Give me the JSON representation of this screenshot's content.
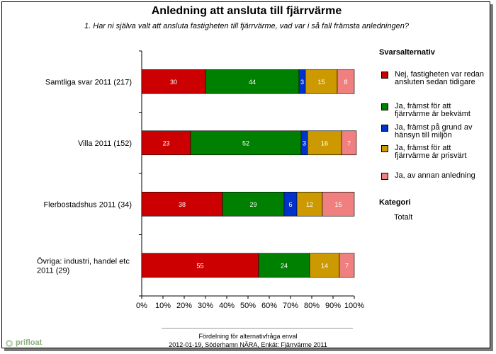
{
  "title": "Anledning att ansluta till fjärrvärme",
  "subtitle": "1. Har ni själva valt att ansluta fastigheten till fjärrvärme, vad var i så fall främsta anledningen?",
  "legend_title": "Svarsalternativ",
  "category_title": "Kategori",
  "category_value": "Totalt",
  "footer_line1": "Fördelning för alternativfråga enval",
  "footer_line2": "2012-01-19, Söderhamn NÄRA, Enkät: Fjärrvärme 2011",
  "brand": "prifloat",
  "chart_data": {
    "type": "bar",
    "orientation": "horizontal",
    "stacked": true,
    "categories": [
      "Samtliga svar 2011 (217)",
      "Villa 2011 (152)",
      "Flerbostadshus 2011 (34)",
      "Övriga: industri, handel etc 2011 (29)"
    ],
    "xlim": [
      0,
      100
    ],
    "x_ticks": [
      "0%",
      "10%",
      "20%",
      "30%",
      "40%",
      "50%",
      "60%",
      "70%",
      "80%",
      "90%",
      "100%"
    ],
    "series": [
      {
        "name": "Nej, fastigheten var redan ansluten sedan tidigare",
        "color": "#cc0000",
        "values": [
          30,
          23,
          38,
          55
        ]
      },
      {
        "name": "Ja, främst för att fjärrvärme är bekvämt",
        "color": "#008000",
        "values": [
          44,
          52,
          29,
          24
        ]
      },
      {
        "name": "Ja, främst på grund av hänsyn till miljön",
        "color": "#0033cc",
        "values": [
          3,
          3,
          6,
          0
        ]
      },
      {
        "name": "Ja, främst för att fjärrvärme är prisvärt",
        "color": "#cc9900",
        "values": [
          15,
          16,
          12,
          14
        ]
      },
      {
        "name": "Ja, av annan anledning",
        "color": "#f08080",
        "values": [
          8,
          7,
          15,
          7
        ]
      }
    ]
  }
}
